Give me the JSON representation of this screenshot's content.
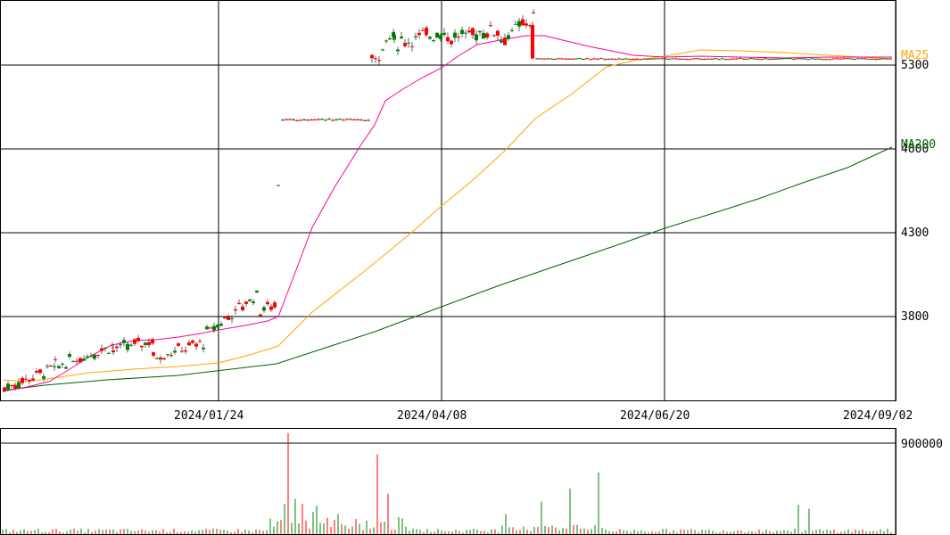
{
  "chart_data": {
    "type": "candlestick",
    "price_axis": {
      "ticks": [
        "3800",
        "4300",
        "4800",
        "5300"
      ],
      "range": [
        3350,
        5680
      ]
    },
    "volume_axis": {
      "ticks": [
        "900000"
      ],
      "range": [
        0,
        1050000
      ]
    },
    "date_labels": [
      "2024/01/24",
      "2024/04/08",
      "2024/06/20",
      "2024/09/02"
    ],
    "ma_labels": {
      "ma25": "MA25",
      "ma200": "MA200"
    },
    "colors": {
      "up": "#008000",
      "down": "#ff0000",
      "ma25": "#ff0099",
      "ma75": "#ffa500",
      "ma200": "#006400",
      "grid": "#000000",
      "volume": "#008000"
    },
    "grid": true
  }
}
